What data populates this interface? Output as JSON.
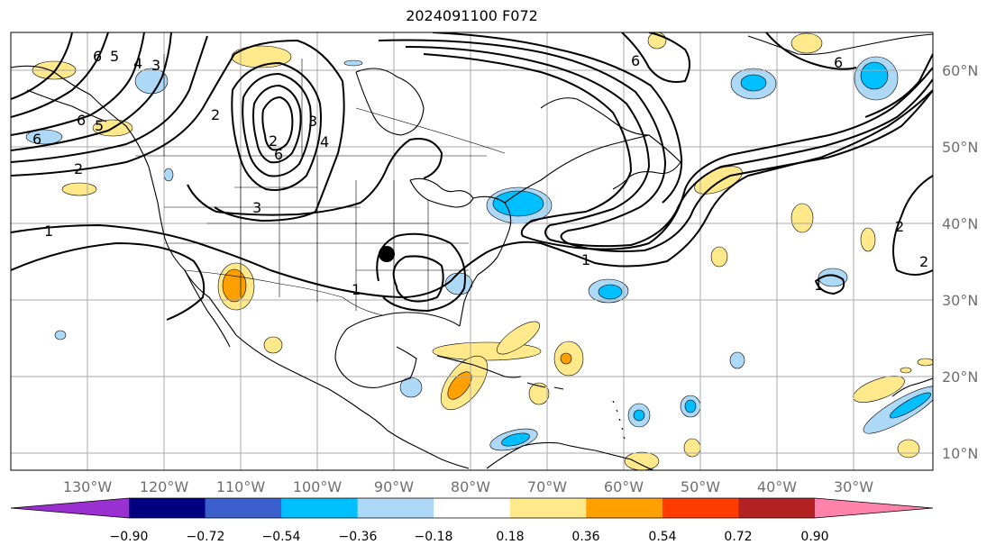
{
  "title": "2024091100 F072",
  "map": {
    "projection": "equirectangular",
    "lon_range": [
      -140,
      -15
    ],
    "lat_range": [
      8,
      65
    ],
    "lon_ticks": [
      "130°W",
      "120°W",
      "110°W",
      "100°W",
      "90°W",
      "80°W",
      "70°W",
      "60°W",
      "50°W",
      "40°W",
      "30°W"
    ],
    "lat_ticks": [
      "60°N",
      "50°N",
      "40°N",
      "30°N",
      "20°N",
      "10°N"
    ],
    "contour_labels": [
      "6",
      "5",
      "4",
      "3",
      "2",
      "6",
      "6",
      "5",
      "2",
      "3",
      "2",
      "4",
      "6",
      "3",
      "1",
      "1",
      "1",
      "1",
      "2",
      "2",
      "6",
      "6"
    ],
    "marker": "black-dot"
  },
  "colorbar": {
    "tick_labels": [
      "−0.90",
      "−0.72",
      "−0.54",
      "−0.36",
      "−0.18",
      "0.18",
      "0.36",
      "0.54",
      "0.72",
      "0.90"
    ],
    "colors": [
      "#9b30d0",
      "#000080",
      "#3a5fcd",
      "#00bfff",
      "#add8f6",
      "#ffffff",
      "#ffe98a",
      "#ff9f00",
      "#ff3c00",
      "#b22222",
      "#ff82ab"
    ]
  }
}
